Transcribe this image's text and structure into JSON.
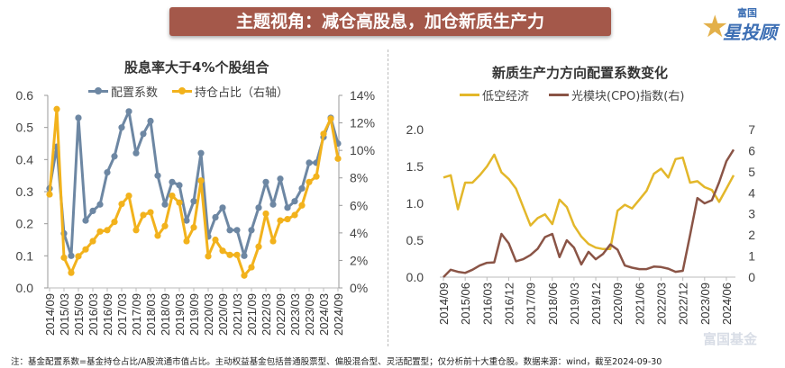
{
  "banner": {
    "title": "主题视角：减仓高股息，加仓新质生产力"
  },
  "logo": {
    "small": "富国",
    "big": "星投顾"
  },
  "watermark": "富国基金",
  "footer": "注：基金配置系数=基金持仓占比/A股流通市值占比。主动权益基金包括普通股票型、偏股混合型、灵活配置型；仅分析前十大重仓股。数据来源：wind，截至2024-09-30",
  "chart_data": [
    {
      "type": "line",
      "title": "股息率大于4%个股组合",
      "legend_position": "top",
      "x": [
        "2014/09",
        "2014/12",
        "2015/03",
        "2015/06",
        "2015/09",
        "2015/12",
        "2016/03",
        "2016/06",
        "2016/09",
        "2016/12",
        "2017/03",
        "2017/06",
        "2017/09",
        "2017/12",
        "2018/03",
        "2018/06",
        "2018/09",
        "2018/12",
        "2019/03",
        "2019/06",
        "2019/09",
        "2019/12",
        "2020/03",
        "2020/06",
        "2020/09",
        "2020/12",
        "2021/03",
        "2021/06",
        "2021/09",
        "2021/12",
        "2022/03",
        "2022/06",
        "2022/09",
        "2022/12",
        "2023/03",
        "2023/06",
        "2023/09",
        "2023/12",
        "2024/03",
        "2024/06",
        "2024/09"
      ],
      "tick_labels": [
        "2014/09",
        "2015/03",
        "2015/09",
        "2016/03",
        "2016/09",
        "2017/03",
        "2017/09",
        "2018/03",
        "2018/09",
        "2019/03",
        "2019/09",
        "2020/03",
        "2020/09",
        "2021/03",
        "2021/09",
        "2022/03",
        "2022/09",
        "2023/03",
        "2023/09",
        "2024/03",
        "2024/09"
      ],
      "ylim": [
        0,
        0.6
      ],
      "yticks": [
        "0.0",
        "0.1",
        "0.2",
        "0.3",
        "0.4",
        "0.5",
        "0.6"
      ],
      "y2lim": [
        0,
        14
      ],
      "y2ticks": [
        "0%",
        "2%",
        "4%",
        "6%",
        "8%",
        "10%",
        "12%",
        "14%"
      ],
      "series": [
        {
          "name": "配置系数",
          "axis": "left",
          "color": "#6d87a3",
          "values": [
            0.31,
            0.44,
            0.17,
            0.1,
            0.53,
            0.21,
            0.24,
            0.26,
            0.36,
            0.41,
            0.5,
            0.55,
            0.42,
            0.48,
            0.52,
            0.35,
            0.26,
            0.33,
            0.32,
            0.21,
            0.27,
            0.42,
            0.16,
            0.22,
            0.25,
            0.18,
            0.18,
            0.1,
            0.18,
            0.25,
            0.33,
            0.26,
            0.34,
            0.25,
            0.27,
            0.31,
            0.39,
            0.39,
            0.47,
            0.53,
            0.45
          ]
        },
        {
          "name": "持仓占比（右轴）",
          "axis": "right",
          "color": "#f2b21c",
          "values": [
            6.8,
            13.0,
            2.2,
            1.1,
            2.3,
            2.8,
            3.4,
            4.1,
            4.2,
            4.8,
            6.1,
            6.7,
            4.2,
            5.3,
            5.5,
            3.8,
            4.5,
            6.7,
            6.2,
            3.4,
            4.4,
            7.8,
            2.3,
            3.5,
            2.7,
            2.4,
            2.4,
            0.9,
            1.5,
            3.0,
            5.4,
            3.4,
            4.9,
            5.0,
            5.3,
            6.0,
            7.7,
            8.1,
            11.2,
            12.3,
            9.4
          ]
        }
      ]
    },
    {
      "type": "line",
      "title": "新质生产力方向配置系数变化",
      "legend_position": "top",
      "x": [
        "2014/09",
        "2014/12",
        "2015/03",
        "2015/06",
        "2015/09",
        "2015/12",
        "2016/03",
        "2016/06",
        "2016/09",
        "2016/12",
        "2017/03",
        "2017/06",
        "2017/09",
        "2017/12",
        "2018/03",
        "2018/06",
        "2018/09",
        "2018/12",
        "2019/03",
        "2019/06",
        "2019/09",
        "2019/12",
        "2020/03",
        "2020/06",
        "2020/09",
        "2020/12",
        "2021/03",
        "2021/06",
        "2021/09",
        "2021/12",
        "2022/03",
        "2022/06",
        "2022/09",
        "2022/12",
        "2023/03",
        "2023/06",
        "2023/09",
        "2023/12",
        "2024/03",
        "2024/06",
        "2024/09"
      ],
      "tick_labels": [
        "2014/09",
        "2015/06",
        "2016/03",
        "2016/12",
        "2017/09",
        "2018/06",
        "2019/03",
        "2019/12",
        "2020/09",
        "2021/06",
        "2022/03",
        "2022/12",
        "2023/09",
        "2024/06"
      ],
      "ylim": [
        0,
        2.0
      ],
      "yticks": [
        "0.0",
        "0.5",
        "1.0",
        "1.5",
        "2.0"
      ],
      "y2lim": [
        0,
        7
      ],
      "y2ticks": [
        "0",
        "1",
        "2",
        "3",
        "4",
        "5",
        "6",
        "7"
      ],
      "series": [
        {
          "name": "低空经济",
          "axis": "left",
          "color": "#e3b72a",
          "values": [
            1.35,
            1.38,
            0.92,
            1.28,
            1.28,
            1.38,
            1.5,
            1.66,
            1.42,
            1.33,
            1.2,
            0.95,
            0.7,
            0.8,
            0.85,
            0.72,
            1.05,
            0.95,
            0.7,
            0.55,
            0.45,
            0.4,
            0.38,
            0.38,
            0.9,
            0.98,
            0.93,
            1.05,
            1.17,
            1.4,
            1.47,
            1.35,
            1.6,
            1.62,
            1.28,
            1.3,
            1.22,
            1.18,
            1.02,
            1.2,
            1.38
          ]
        },
        {
          "name": "光模块(CPO)指数(右)",
          "axis": "right",
          "color": "#8a5446",
          "values": [
            0.0,
            0.35,
            0.25,
            0.2,
            0.35,
            0.55,
            0.68,
            0.7,
            2.05,
            1.6,
            0.75,
            0.85,
            1.05,
            1.35,
            1.9,
            2.05,
            0.95,
            1.75,
            1.4,
            0.6,
            1.2,
            0.85,
            1.1,
            1.55,
            1.3,
            0.55,
            0.45,
            0.38,
            0.38,
            0.5,
            0.48,
            0.4,
            0.25,
            0.3,
            2.0,
            3.75,
            3.5,
            3.65,
            4.5,
            5.5,
            6.05
          ]
        }
      ]
    }
  ]
}
